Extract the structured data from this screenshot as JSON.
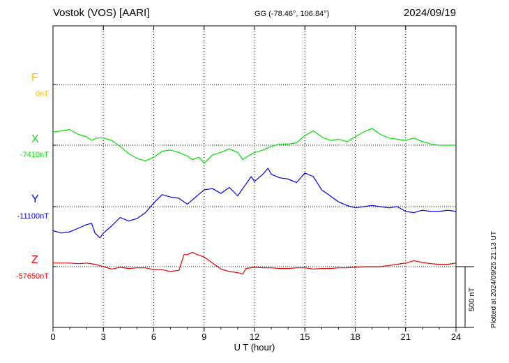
{
  "header": {
    "station": "Vostok (VOS)  [AARI]",
    "coords": "GG (-78.46°, 106.84°)",
    "date": "2024/09/19"
  },
  "footer": {
    "plotted": "Plotted at 2024/09/25 21:13 UT",
    "scale_label": "500 nT"
  },
  "chart_data": {
    "type": "line",
    "title": "Vostok (VOS)  [AARI]",
    "xlabel": "U T (hour)",
    "ylabel": "",
    "xlim": [
      0,
      24
    ],
    "x_ticks": [
      "0",
      "3",
      "6",
      "9",
      "12",
      "15",
      "18",
      "21",
      "24"
    ],
    "grid": true,
    "scale_bar_nT": 500,
    "series": [
      {
        "name": "F",
        "baseline_label": "0nT",
        "baseline": 0,
        "color": "#f5b800",
        "x": [],
        "y": []
      },
      {
        "name": "X",
        "baseline_label": "-7410nT",
        "baseline": -7410,
        "color": "#00e000",
        "x": [
          0,
          0.5,
          1,
          1.5,
          2,
          2.3,
          2.6,
          3,
          3.5,
          4,
          4.5,
          5,
          5.5,
          6,
          6.5,
          7,
          7.5,
          8,
          8.3,
          8.7,
          9,
          9.5,
          10,
          10.5,
          11,
          11.3,
          11.5,
          12,
          12.5,
          13,
          13.5,
          14,
          14.5,
          15,
          15.5,
          16,
          16.5,
          17,
          17.5,
          18,
          18.5,
          19,
          19.5,
          20,
          20.5,
          21,
          21.5,
          22,
          22.5,
          23,
          23.5,
          24
        ],
        "y": [
          -7300,
          -7290,
          -7280,
          -7320,
          -7340,
          -7370,
          -7350,
          -7350,
          -7370,
          -7420,
          -7480,
          -7520,
          -7540,
          -7510,
          -7460,
          -7450,
          -7470,
          -7500,
          -7530,
          -7510,
          -7560,
          -7490,
          -7470,
          -7440,
          -7470,
          -7530,
          -7510,
          -7470,
          -7450,
          -7420,
          -7400,
          -7400,
          -7390,
          -7330,
          -7290,
          -7340,
          -7370,
          -7360,
          -7380,
          -7340,
          -7300,
          -7270,
          -7320,
          -7350,
          -7360,
          -7370,
          -7350,
          -7380,
          -7400,
          -7410,
          -7410,
          -7410
        ]
      },
      {
        "name": "Y",
        "baseline_label": "-11100nT",
        "baseline": -11100,
        "color": "#0000e0",
        "x": [
          0,
          0.5,
          1,
          1.5,
          2,
          2.3,
          2.5,
          2.8,
          3,
          3.5,
          4,
          4.5,
          5,
          5.5,
          6,
          6.5,
          7,
          7.5,
          8,
          8.5,
          9,
          9.5,
          10,
          10.5,
          11,
          11.5,
          11.8,
          12,
          12.5,
          12.8,
          13,
          13.5,
          14,
          14.5,
          15,
          15.5,
          16,
          16.5,
          17,
          17.5,
          18,
          18.5,
          19,
          19.5,
          20,
          20.5,
          21,
          21.5,
          22,
          22.5,
          23,
          23.5,
          24
        ],
        "y": [
          -11300,
          -11320,
          -11310,
          -11280,
          -11250,
          -11240,
          -11320,
          -11360,
          -11320,
          -11260,
          -11190,
          -11220,
          -11200,
          -11150,
          -11070,
          -11000,
          -11020,
          -11030,
          -11080,
          -11020,
          -10960,
          -10950,
          -10990,
          -10940,
          -11010,
          -10910,
          -10850,
          -10890,
          -10830,
          -10780,
          -10830,
          -10860,
          -10870,
          -10900,
          -10820,
          -10850,
          -10960,
          -11010,
          -11060,
          -11090,
          -11110,
          -11100,
          -11090,
          -11100,
          -11110,
          -11100,
          -11140,
          -11150,
          -11130,
          -11140,
          -11140,
          -11130,
          -11140
        ]
      },
      {
        "name": "Z",
        "baseline_label": "-57650nT",
        "baseline": -57650,
        "color": "#e00000",
        "x": [
          0,
          0.5,
          1,
          1.5,
          2,
          2.5,
          3,
          3.5,
          4,
          4.5,
          5,
          5.5,
          6,
          6.5,
          7,
          7.5,
          7.8,
          8,
          8.3,
          8.6,
          9,
          9.5,
          10,
          10.5,
          11,
          11.3,
          11.5,
          12,
          12.5,
          13,
          13.5,
          14,
          14.5,
          15,
          15.5,
          16,
          16.5,
          17,
          17.5,
          18,
          18.5,
          19,
          19.5,
          20,
          20.5,
          21,
          21.5,
          22,
          22.5,
          23,
          23.5,
          24
        ],
        "y": [
          -57620,
          -57620,
          -57620,
          -57625,
          -57620,
          -57630,
          -57650,
          -57670,
          -57655,
          -57665,
          -57660,
          -57660,
          -57675,
          -57675,
          -57690,
          -57680,
          -57550,
          -57550,
          -57530,
          -57550,
          -57570,
          -57620,
          -57670,
          -57690,
          -57700,
          -57710,
          -57665,
          -57655,
          -57660,
          -57660,
          -57665,
          -57665,
          -57660,
          -57660,
          -57670,
          -57665,
          -57665,
          -57660,
          -57660,
          -57655,
          -57650,
          -57650,
          -57650,
          -57640,
          -57630,
          -57620,
          -57600,
          -57615,
          -57625,
          -57630,
          -57630,
          -57620
        ]
      }
    ]
  }
}
